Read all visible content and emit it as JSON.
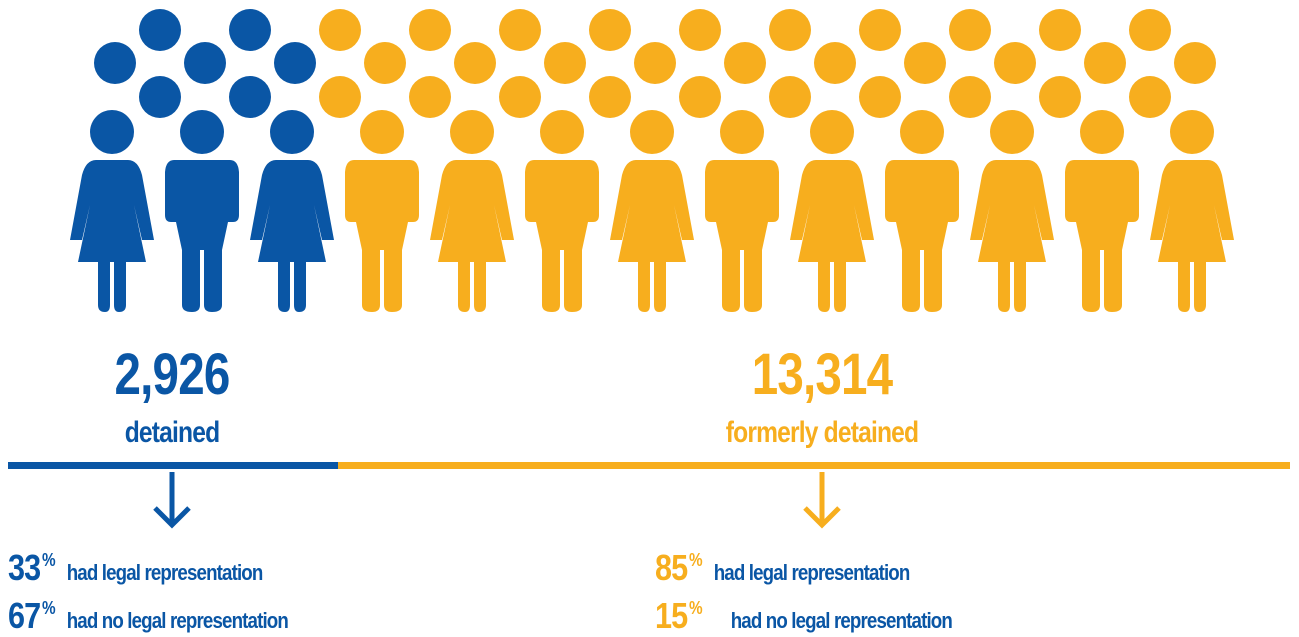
{
  "groups": [
    {
      "count": "2,926",
      "label": "detained",
      "stats": [
        {
          "value": "33",
          "unit": "%",
          "text": "had legal representation"
        },
        {
          "value": "67",
          "unit": "%",
          "text": "had no legal representation"
        }
      ]
    },
    {
      "count": "13,314",
      "label": "formerly detained",
      "stats": [
        {
          "value": "85",
          "unit": "%",
          "text": "had legal representation"
        },
        {
          "value": "15",
          "unit": "%",
          "text": "had no legal representation"
        }
      ]
    }
  ]
}
